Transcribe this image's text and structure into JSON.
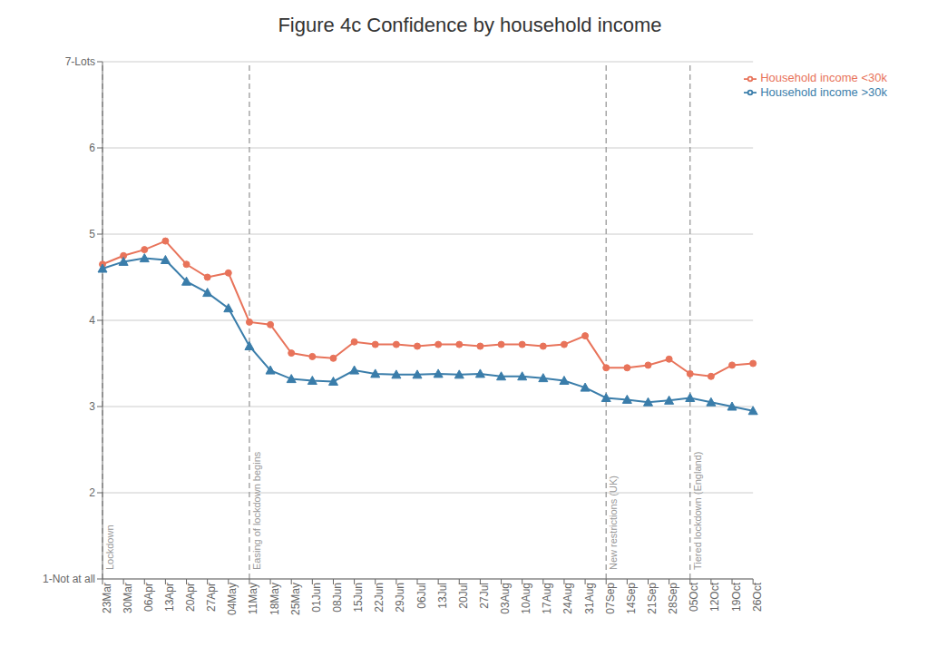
{
  "chart_data": {
    "type": "line",
    "title": "Figure 4c Confidence by household income",
    "categories": [
      "23Mar",
      "30Mar",
      "06Apr",
      "13Apr",
      "20Apr",
      "27Apr",
      "04May",
      "11May",
      "18May",
      "25May",
      "01Jun",
      "08Jun",
      "15Jun",
      "22Jun",
      "29Jun",
      "06Jul",
      "13Jul",
      "20Jul",
      "27Jul",
      "03Aug",
      "10Aug",
      "17Aug",
      "24Aug",
      "31Aug",
      "07Sep",
      "14Sep",
      "21Sep",
      "28Sep",
      "05Oct",
      "12Oct",
      "19Oct",
      "26Oct"
    ],
    "series": [
      {
        "name": "Household income <30k",
        "color": "#E8735A",
        "marker": "circle",
        "values": [
          4.65,
          4.75,
          4.82,
          4.92,
          4.65,
          4.5,
          4.55,
          3.98,
          3.95,
          3.62,
          3.58,
          3.56,
          3.75,
          3.72,
          3.72,
          3.7,
          3.72,
          3.72,
          3.7,
          3.72,
          3.72,
          3.7,
          3.72,
          3.82,
          3.45,
          3.45,
          3.48,
          3.55,
          3.38,
          3.35,
          3.48,
          3.5
        ]
      },
      {
        "name": "Household income >30k",
        "color": "#3A7DAA",
        "marker": "triangle",
        "values": [
          4.6,
          4.68,
          4.72,
          4.7,
          4.45,
          4.32,
          4.14,
          3.7,
          3.42,
          3.32,
          3.3,
          3.29,
          3.42,
          3.38,
          3.37,
          3.37,
          3.38,
          3.37,
          3.38,
          3.35,
          3.35,
          3.33,
          3.3,
          3.22,
          3.1,
          3.08,
          3.05,
          3.07,
          3.1,
          3.05,
          3.0,
          2.95
        ]
      }
    ],
    "ylim": [
      1,
      7
    ],
    "yticks": [
      {
        "value": 1,
        "label": "1-Not at all"
      },
      2,
      3,
      4,
      5,
      6,
      {
        "value": 7,
        "label": "7-Lots"
      }
    ],
    "grid": true,
    "legend": "upper right",
    "annotations": [
      {
        "x": "23Mar",
        "text": "Lockdown",
        "color": "#999999",
        "line_style": "dashed"
      },
      {
        "x": "11May",
        "text": "Easing of lockdown begins",
        "color": "#999999",
        "line_style": "dashed"
      },
      {
        "x": "07Sep",
        "text": "New restrictions (UK)",
        "color": "#999999",
        "line_style": "dashed"
      },
      {
        "x": "05Oct",
        "text": "Tiered lockdown (England)",
        "color": "#999999",
        "line_style": "dashed"
      }
    ]
  }
}
